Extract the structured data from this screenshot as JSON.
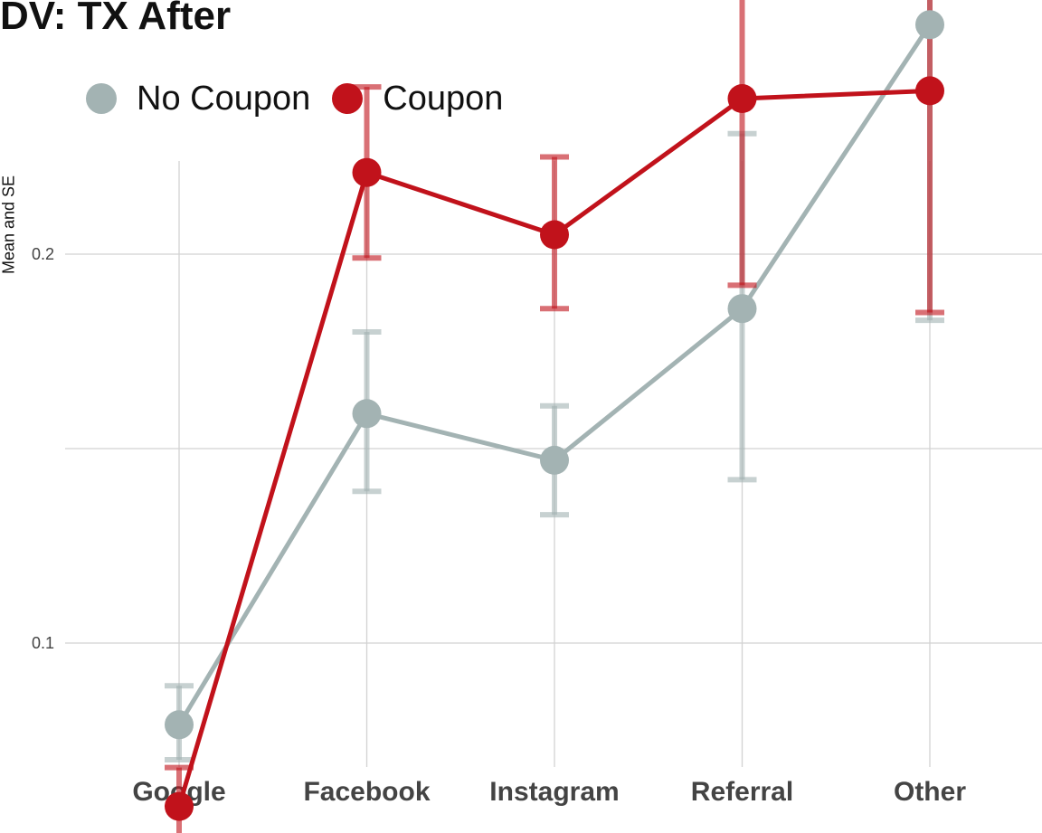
{
  "chart_data": {
    "type": "line",
    "title": "DV: TX After",
    "xlabel": "",
    "ylabel": "Mean and SE",
    "categories": [
      "Google",
      "Facebook",
      "Instagram",
      "Referral",
      "Other"
    ],
    "ylim": [
      0.05,
      0.35
    ],
    "yticks": [
      0.1,
      0.2,
      0.3
    ],
    "grid": true,
    "legend_position": "top-left",
    "series": [
      {
        "name": "No Coupon",
        "color": "#a3b3b3",
        "values": [
          0.079,
          0.159,
          0.147,
          0.186,
          0.259
        ],
        "se_low": [
          0.07,
          0.139,
          0.133,
          0.142,
          0.183
        ],
        "se_high": [
          0.089,
          0.18,
          0.161,
          0.231,
          0.335
        ]
      },
      {
        "name": "Coupon",
        "color": "#c1121b",
        "values": [
          0.058,
          0.221,
          0.205,
          0.24,
          0.242
        ],
        "se_low": [
          0.05,
          0.199,
          0.186,
          0.192,
          0.185
        ],
        "se_high": [
          0.068,
          0.243,
          0.225,
          0.289,
          0.298
        ]
      }
    ]
  }
}
